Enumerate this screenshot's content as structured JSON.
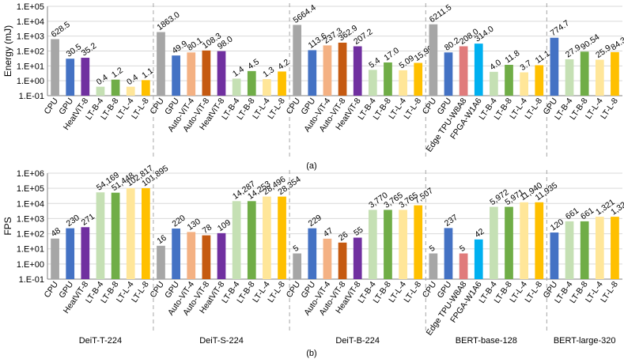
{
  "colors": {
    "CPU": "#a6a6a6",
    "GPU": "#4472c4",
    "HeatViT-8": "#7030a0",
    "LT-B-4": "#c5e0b4",
    "LT-B-8": "#70ad47",
    "LT-L-4": "#ffe699",
    "LT-L-8": "#ffc000",
    "Auto-ViT-4": "#f4b183",
    "Auto-ViT-8": "#c55a11",
    "Edge TPU-W8A8": "#e07b7b",
    "FPGA-W1A6": "#00b0f0",
    "grid": "#d9d9d9",
    "separator": "#a6a6a6"
  },
  "chart_data": [
    {
      "type": "bar",
      "ylabel": "Energy (mJ)",
      "yscale": "log",
      "ylim": [
        0.1,
        100000
      ],
      "yticks": [
        "1.E-01",
        "1.E+00",
        "1.E+01",
        "1.E+02",
        "1.E+03",
        "1.E+04",
        "1.E+05"
      ],
      "caption": "(a)",
      "groups": [
        {
          "name": "DeiT-T-224",
          "bars": [
            {
              "label": "CPU",
              "value": 628.5,
              "text": "628.5"
            },
            {
              "label": "GPU",
              "value": 30.5,
              "text": "30.5"
            },
            {
              "label": "HeatViT-8",
              "value": 35.2,
              "text": "35.2"
            },
            {
              "label": "LT-B-4",
              "value": 0.4,
              "text": "0.4"
            },
            {
              "label": "LT-B-8",
              "value": 1.2,
              "text": "1.2"
            },
            {
              "label": "LT-L-4",
              "value": 0.4,
              "text": "0.4"
            },
            {
              "label": "LT-L-8",
              "value": 1.1,
              "text": "1.1"
            }
          ]
        },
        {
          "name": "DeiT-S-224",
          "bars": [
            {
              "label": "CPU",
              "value": 1863.0,
              "text": "1863.0"
            },
            {
              "label": "GPU",
              "value": 49.9,
              "text": "49.9"
            },
            {
              "label": "Auto-ViT-4",
              "value": 80.1,
              "text": "80.1"
            },
            {
              "label": "Auto-ViT-8",
              "value": 108.3,
              "text": "108.3"
            },
            {
              "label": "HeatViT-8",
              "value": 98.0,
              "text": "98.0"
            },
            {
              "label": "LT-B-4",
              "value": 1.4,
              "text": "1.4"
            },
            {
              "label": "LT-B-8",
              "value": 4.5,
              "text": "4.5"
            },
            {
              "label": "LT-L-4",
              "value": 1.3,
              "text": "1.3"
            },
            {
              "label": "LT-L-8",
              "value": 4.2,
              "text": "4.2"
            }
          ]
        },
        {
          "name": "DeiT-B-224",
          "bars": [
            {
              "label": "CPU",
              "value": 5664.4,
              "text": "5664.4"
            },
            {
              "label": "GPU",
              "value": 113.6,
              "text": "113.6"
            },
            {
              "label": "Auto-ViT-4",
              "value": 237.3,
              "text": "237.3"
            },
            {
              "label": "Auto-ViT-8",
              "value": 362.9,
              "text": "362.9"
            },
            {
              "label": "HeatViT-8",
              "value": 207.2,
              "text": "207.2"
            },
            {
              "label": "LT-B-4",
              "value": 5.4,
              "text": "5.4"
            },
            {
              "label": "LT-B-8",
              "value": 17.0,
              "text": "17.0"
            },
            {
              "label": "LT-L-4",
              "value": 5.09,
              "text": "5.09"
            },
            {
              "label": "LT-L-8",
              "value": 15.9,
              "text": "15.90"
            }
          ]
        },
        {
          "name": "BERT-base-128",
          "bars": [
            {
              "label": "CPU",
              "value": 6211.5,
              "text": "6211.5"
            },
            {
              "label": "GPU",
              "value": 80.2,
              "text": "80.2"
            },
            {
              "label": "Edge TPU-W8A8",
              "value": 208.0,
              "text": "208.0"
            },
            {
              "label": "FPGA-W1A6",
              "value": 314.0,
              "text": "314.0"
            },
            {
              "label": "LT-B-4",
              "value": 4.0,
              "text": "4.0"
            },
            {
              "label": "LT-B-8",
              "value": 11.8,
              "text": "11.8"
            },
            {
              "label": "LT-L-4",
              "value": 3.7,
              "text": "3.7"
            },
            {
              "label": "LT-L-8",
              "value": 11.1,
              "text": "11.1"
            }
          ]
        },
        {
          "name": "BERT-large-320",
          "bars": [
            {
              "label": "GPU",
              "value": 774.7,
              "text": "774.7"
            },
            {
              "label": "LT-B-4",
              "value": 27.9,
              "text": "27.9"
            },
            {
              "label": "LT-B-8",
              "value": 90.54,
              "text": "90.54"
            },
            {
              "label": "LT-L-4",
              "value": 25.9,
              "text": "25.9"
            },
            {
              "label": "LT-L-8",
              "value": 84.3,
              "text": "84.3"
            }
          ]
        }
      ]
    },
    {
      "type": "bar",
      "ylabel": "FPS",
      "yscale": "log",
      "ylim": [
        0.1,
        1000000
      ],
      "yticks": [
        "1.E-01",
        "1.E+00",
        "1.E+01",
        "1.E+02",
        "1.E+03",
        "1.E+04",
        "1.E+05",
        "1.E+06"
      ],
      "caption": "(b)",
      "groups": [
        {
          "name": "DeiT-T-224",
          "bars": [
            {
              "label": "CPU",
              "value": 48,
              "text": "48"
            },
            {
              "label": "GPU",
              "value": 230,
              "text": "230"
            },
            {
              "label": "HeatViT-8",
              "value": 271,
              "text": "271"
            },
            {
              "label": "LT-B-4",
              "value": 54169,
              "text": "54,169"
            },
            {
              "label": "LT-B-8",
              "value": 51448,
              "text": "51,448"
            },
            {
              "label": "LT-L-4",
              "value": 102817,
              "text": "102,817"
            },
            {
              "label": "LT-L-8",
              "value": 101895,
              "text": "101,895"
            }
          ]
        },
        {
          "name": "DeiT-S-224",
          "bars": [
            {
              "label": "CPU",
              "value": 16,
              "text": "16"
            },
            {
              "label": "GPU",
              "value": 220,
              "text": "220"
            },
            {
              "label": "Auto-ViT-4",
              "value": 130,
              "text": "130"
            },
            {
              "label": "Auto-ViT-8",
              "value": 78,
              "text": "78"
            },
            {
              "label": "HeatViT-8",
              "value": 109,
              "text": "109"
            },
            {
              "label": "LT-B-4",
              "value": 14287,
              "text": "14,287"
            },
            {
              "label": "LT-B-8",
              "value": 14253,
              "text": "14,253"
            },
            {
              "label": "LT-L-4",
              "value": 28496,
              "text": "28,496"
            },
            {
              "label": "LT-L-8",
              "value": 28354,
              "text": "28,354"
            }
          ]
        },
        {
          "name": "DeiT-B-224",
          "bars": [
            {
              "label": "CPU",
              "value": 5,
              "text": "5"
            },
            {
              "label": "GPU",
              "value": 229,
              "text": "229"
            },
            {
              "label": "Auto-ViT-4",
              "value": 47,
              "text": "47"
            },
            {
              "label": "Auto-ViT-8",
              "value": 26,
              "text": "26"
            },
            {
              "label": "HeatViT-8",
              "value": 55,
              "text": "55"
            },
            {
              "label": "LT-B-4",
              "value": 3770,
              "text": "3,770"
            },
            {
              "label": "LT-B-8",
              "value": 3765,
              "text": "3,765"
            },
            {
              "label": "LT-L-4",
              "value": 3765,
              "text": "3,765"
            },
            {
              "label": "LT-L-8",
              "value": 7507,
              "text": "7,507"
            }
          ]
        },
        {
          "name": "BERT-base-128",
          "bars": [
            {
              "label": "CPU",
              "value": 5,
              "text": "5"
            },
            {
              "label": "GPU",
              "value": 237,
              "text": "237"
            },
            {
              "label": "Edge TPU-W8A8",
              "value": 5,
              "text": "5"
            },
            {
              "label": "FPGA-W1A6",
              "value": 42,
              "text": "42"
            },
            {
              "label": "LT-B-4",
              "value": 5972,
              "text": "5,972"
            },
            {
              "label": "LT-B-8",
              "value": 5971,
              "text": "5,971"
            },
            {
              "label": "LT-L-4",
              "value": 11940,
              "text": "11,940"
            },
            {
              "label": "LT-L-8",
              "value": 11935,
              "text": "11,935"
            }
          ]
        },
        {
          "name": "BERT-large-320",
          "bars": [
            {
              "label": "GPU",
              "value": 120,
              "text": "120"
            },
            {
              "label": "LT-B-4",
              "value": 661,
              "text": "661"
            },
            {
              "label": "LT-B-8",
              "value": 661,
              "text": "661"
            },
            {
              "label": "LT-L-4",
              "value": 1321,
              "text": "1,321"
            },
            {
              "label": "LT-L-8",
              "value": 1321,
              "text": "1,321"
            }
          ]
        }
      ]
    }
  ]
}
